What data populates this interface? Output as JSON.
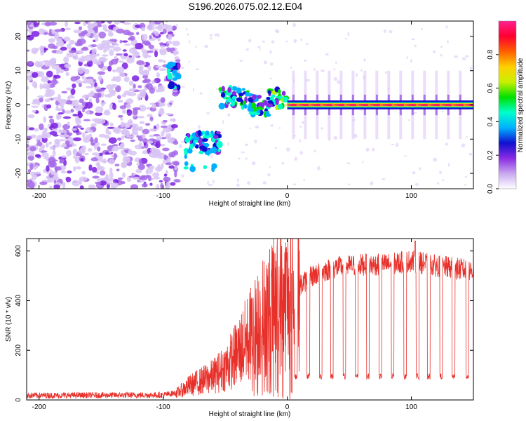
{
  "title": "S196.2026.075.02.12.E04",
  "chart_data": [
    {
      "type": "heatmap",
      "name": "spectrogram",
      "xlabel": "Height of straight line (km)",
      "ylabel": "Frequency (Hz)",
      "xlim": [
        -210,
        150
      ],
      "ylim": [
        -24.5,
        24.5
      ],
      "xticks": [
        -200,
        -100,
        0,
        100
      ],
      "yticks": [
        20,
        10,
        0,
        -10,
        -20
      ],
      "colorbar": {
        "label": "Normalized spectral amplitude",
        "range": [
          0,
          1
        ],
        "ticks": [
          0.0,
          0.2,
          0.4,
          0.6,
          0.8
        ],
        "colors": [
          "#ffffff",
          "#c9a8f0",
          "#8a2be2",
          "#1010d0",
          "#00b0ff",
          "#00ffcc",
          "#00e000",
          "#c8f000",
          "#ffd000",
          "#ff6000",
          "#ff0030",
          "#ff2090"
        ]
      },
      "features": [
        {
          "name": "broadband noise",
          "x_range": [
            -210,
            -88
          ],
          "f_range": [
            -24.5,
            24.5
          ],
          "amplitude": 0.12
        },
        {
          "name": "signal (upper)",
          "x_range": [
            -96,
            -87
          ],
          "f_range": [
            5,
            12
          ],
          "amplitude": 0.35
        },
        {
          "name": "signal (lower)",
          "x_range": [
            -82,
            -54
          ],
          "f_range": [
            -18,
            -6
          ],
          "amplitude": 0.35
        },
        {
          "name": "signal transition",
          "x_range": [
            -55,
            0
          ],
          "f_range": [
            -2,
            6
          ],
          "amplitude": 0.45
        },
        {
          "name": "carrier line",
          "x_range": [
            0,
            150
          ],
          "f_range": [
            -0.6,
            0.6
          ],
          "amplitude": 0.9
        }
      ]
    },
    {
      "type": "line",
      "name": "snr",
      "xlabel": "Height of straight line (km)",
      "ylabel": "SNR (10 * v/v)",
      "xlim": [
        -210,
        150
      ],
      "ylim": [
        0,
        650
      ],
      "xticks": [
        -200,
        -100,
        0,
        100
      ],
      "yticks": [
        0,
        200,
        400,
        600
      ],
      "color": "#e8302a",
      "profile": [
        {
          "x": -210,
          "y": 18
        },
        {
          "x": -100,
          "y": 20
        },
        {
          "x": -88,
          "y": 30
        },
        {
          "x": -80,
          "y": 55
        },
        {
          "x": -70,
          "y": 75
        },
        {
          "x": -60,
          "y": 95
        },
        {
          "x": -50,
          "y": 130
        },
        {
          "x": -40,
          "y": 190
        },
        {
          "x": -30,
          "y": 260
        },
        {
          "x": -20,
          "y": 330
        },
        {
          "x": -10,
          "y": 380
        },
        {
          "x": 0,
          "y": 410
        },
        {
          "x": 10,
          "y": 460
        },
        {
          "x": 20,
          "y": 500
        },
        {
          "x": 30,
          "y": 520
        },
        {
          "x": 40,
          "y": 535
        },
        {
          "x": 60,
          "y": 545
        },
        {
          "x": 80,
          "y": 545
        },
        {
          "x": 100,
          "y": 560
        },
        {
          "x": 120,
          "y": 540
        },
        {
          "x": 150,
          "y": 520
        }
      ],
      "dropouts_x": [
        7,
        17,
        27,
        36,
        46,
        56,
        65,
        75,
        85,
        95,
        105,
        114,
        124,
        134,
        145
      ],
      "dropout_level": 95,
      "peak": {
        "x": 103,
        "y": 640
      }
    }
  ]
}
